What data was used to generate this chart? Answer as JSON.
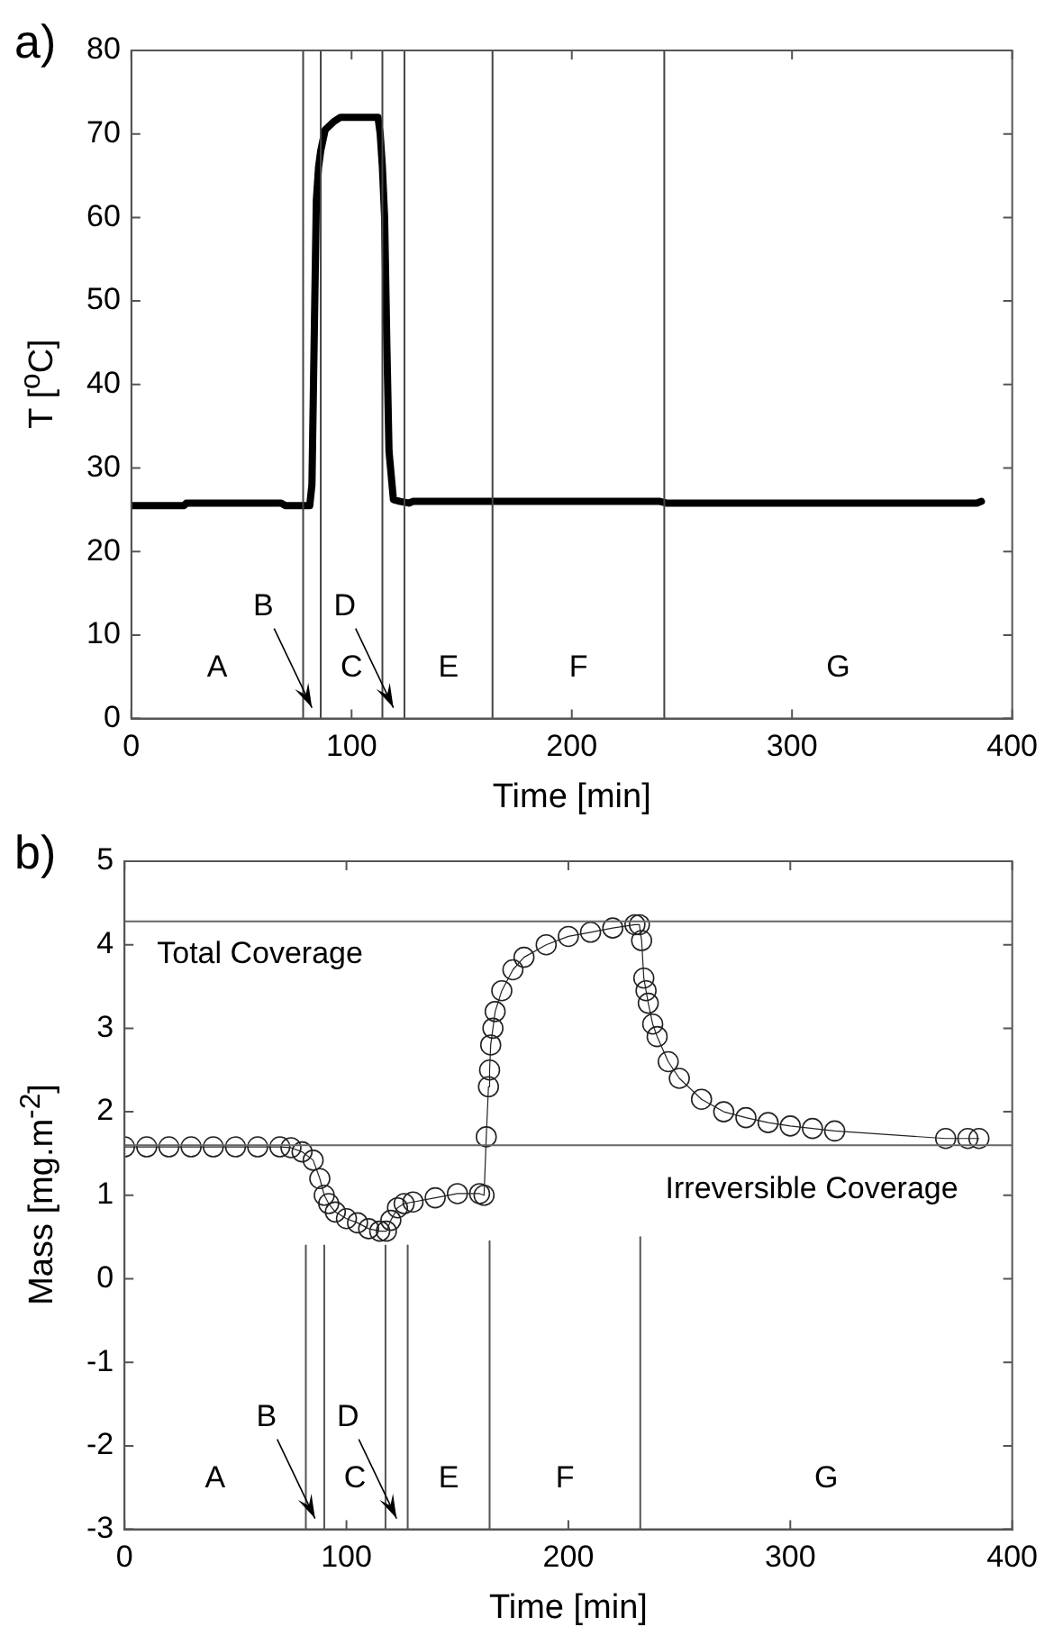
{
  "chart_data": [
    {
      "type": "line",
      "title": "a)",
      "xlabel": "Time [min]",
      "ylabel": "T [$^{o}$C]",
      "xlim": [
        0,
        400
      ],
      "xticks": [
        0,
        100,
        200,
        300,
        400
      ],
      "ylim": [
        0,
        80
      ],
      "yticks": [
        0,
        10,
        20,
        30,
        40,
        50,
        60,
        70,
        80
      ],
      "grid": false,
      "legend": false,
      "marker": "none",
      "line_style": "solid",
      "x": [
        0,
        24,
        25,
        68,
        70,
        81,
        82,
        83,
        84,
        85,
        86,
        88,
        92,
        95,
        112,
        113,
        114,
        115,
        116,
        117,
        119,
        122,
        126,
        128,
        160,
        240,
        243,
        384,
        386
      ],
      "series": [
        {
          "color": "#000000",
          "values": [
            25.5,
            25.5,
            25.8,
            25.8,
            25.5,
            25.5,
            28,
            45,
            62,
            66,
            68,
            70.5,
            71.5,
            72,
            72,
            70,
            66,
            60,
            45,
            32,
            26.2,
            26,
            25.8,
            26,
            26,
            26,
            25.8,
            25.8,
            26
          ]
        }
      ],
      "ref_lines": [
        {
          "axis": "x",
          "value": 78,
          "color": "#444444"
        },
        {
          "axis": "x",
          "value": 86,
          "color": "#444444"
        },
        {
          "axis": "x",
          "value": 114,
          "color": "#444444"
        },
        {
          "axis": "x",
          "value": 124,
          "color": "#444444"
        },
        {
          "axis": "x",
          "value": 164,
          "color": "#444444"
        },
        {
          "axis": "x",
          "value": 242,
          "color": "#444444"
        }
      ],
      "annotations": [
        "A",
        "B",
        "C",
        "D",
        "E",
        "F",
        "G"
      ]
    },
    {
      "type": "line",
      "title": "b)",
      "xlabel": "Time [min]",
      "ylabel": "Mass [mg.m$^{-2}$]",
      "xlim": [
        0,
        400
      ],
      "xticks": [
        0,
        100,
        200,
        300,
        400
      ],
      "ylim": [
        -3,
        5
      ],
      "yticks": [
        -3,
        -2,
        -1,
        0,
        1,
        2,
        3,
        4,
        5
      ],
      "grid": false,
      "legend": false,
      "marker": "circle",
      "line_style": "solid",
      "x": [
        0,
        10,
        20,
        30,
        40,
        50,
        60,
        70,
        75,
        80,
        85,
        88,
        90,
        92,
        95,
        100,
        105,
        110,
        115,
        118,
        120,
        123,
        126,
        130,
        140,
        150,
        160,
        162,
        163,
        164,
        164.5,
        165,
        166,
        167,
        170,
        175,
        180,
        190,
        200,
        210,
        220,
        230,
        232,
        233,
        234,
        235,
        236,
        238,
        240,
        245,
        250,
        260,
        270,
        280,
        290,
        300,
        310,
        320,
        370,
        380,
        385
      ],
      "series": [
        {
          "color": "#222222",
          "values": [
            1.58,
            1.58,
            1.58,
            1.58,
            1.58,
            1.58,
            1.58,
            1.58,
            1.57,
            1.52,
            1.42,
            1.2,
            1.0,
            0.9,
            0.8,
            0.72,
            0.67,
            0.6,
            0.57,
            0.57,
            0.7,
            0.85,
            0.9,
            0.92,
            0.97,
            1.02,
            1.02,
            1.0,
            1.7,
            2.3,
            2.5,
            2.8,
            3.0,
            3.2,
            3.45,
            3.7,
            3.85,
            4.0,
            4.1,
            4.15,
            4.2,
            4.24,
            4.24,
            4.05,
            3.6,
            3.45,
            3.3,
            3.05,
            2.9,
            2.6,
            2.4,
            2.15,
            2.0,
            1.93,
            1.87,
            1.83,
            1.8,
            1.77,
            1.68,
            1.68,
            1.68
          ]
        },
        {
          "type": "line",
          "marker": "none",
          "color": "#555555",
          "x": [
            81.7,
            81.7
          ],
          "values": [
            -3,
            0.4
          ]
        },
        {
          "type": "line",
          "marker": "none",
          "color": "#555555",
          "x": [
            90,
            90
          ],
          "values": [
            -3,
            0.4
          ]
        },
        {
          "type": "line",
          "marker": "none",
          "color": "#555555",
          "x": [
            117.6,
            117.6
          ],
          "values": [
            -3,
            0.4
          ]
        },
        {
          "type": "line",
          "marker": "none",
          "color": "#555555",
          "x": [
            127.6,
            127.6
          ],
          "values": [
            -3,
            0.4
          ]
        },
        {
          "type": "line",
          "marker": "none",
          "color": "#555555",
          "x": [
            164.5,
            164.5
          ],
          "values": [
            -3,
            0.45
          ]
        },
        {
          "type": "line",
          "marker": "none",
          "color": "#555555",
          "x": [
            232.4,
            232.4
          ],
          "values": [
            -3,
            0.5
          ]
        }
      ],
      "ref_lines": [
        {
          "axis": "y",
          "value": 4.28,
          "label": "Total Coverage",
          "color": "#666666"
        },
        {
          "axis": "y",
          "value": 1.6,
          "label": "Irreversible Coverage",
          "color": "#666666"
        }
      ],
      "annotations": [
        "A",
        "B",
        "C",
        "D",
        "E",
        "F",
        "G"
      ]
    }
  ]
}
